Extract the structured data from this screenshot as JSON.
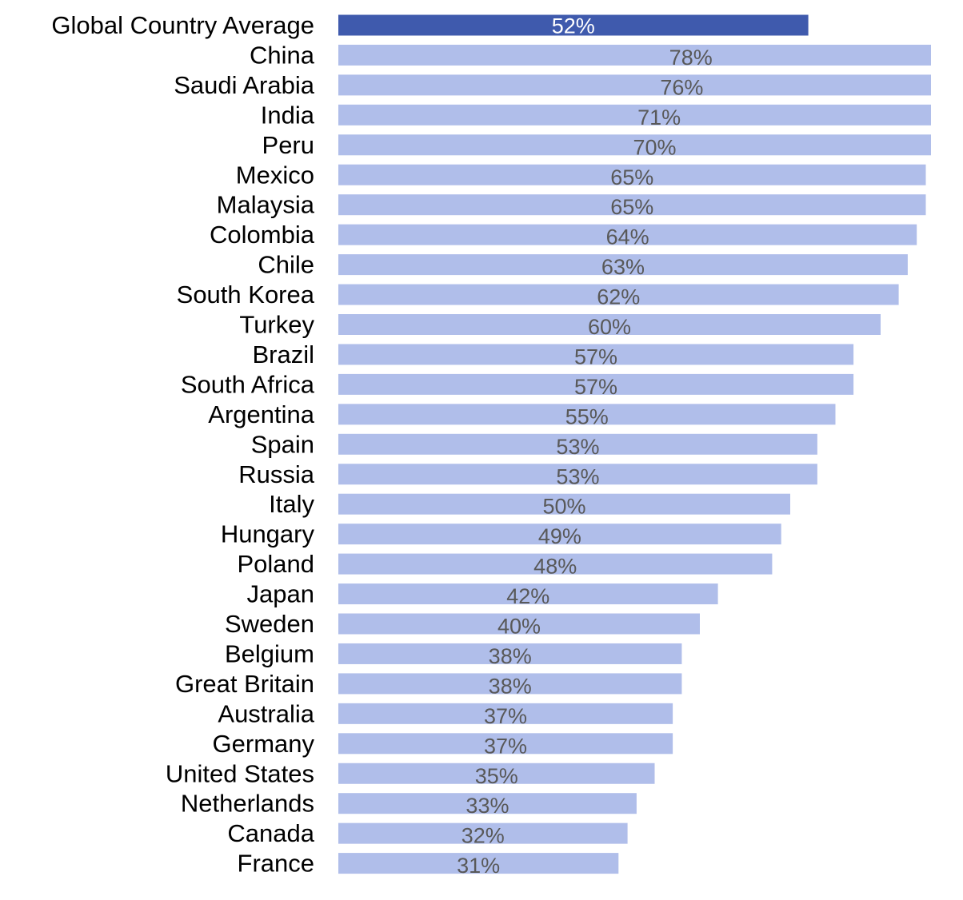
{
  "chart_data": {
    "type": "bar",
    "orientation": "horizontal",
    "categories": [
      "Global Country Average",
      "China",
      "Saudi Arabia",
      "India",
      "Peru",
      "Mexico",
      "Malaysia",
      "Colombia",
      "Chile",
      "South Korea",
      "Turkey",
      "Brazil",
      "South Africa",
      "Argentina",
      "Spain",
      "Russia",
      "Italy",
      "Hungary",
      "Poland",
      "Japan",
      "Sweden",
      "Belgium",
      "Great Britain",
      "Australia",
      "Germany",
      "United States",
      "Netherlands",
      "Canada",
      "France"
    ],
    "values": [
      52,
      78,
      76,
      71,
      70,
      65,
      65,
      64,
      63,
      62,
      60,
      57,
      57,
      55,
      53,
      53,
      50,
      49,
      48,
      42,
      40,
      38,
      38,
      37,
      37,
      35,
      33,
      32,
      31
    ],
    "value_labels": [
      "52%",
      "78%",
      "76%",
      "71%",
      "70%",
      "65%",
      "65%",
      "64%",
      "63%",
      "62%",
      "60%",
      "57%",
      "57%",
      "55%",
      "53%",
      "53%",
      "50%",
      "49%",
      "48%",
      "42%",
      "40%",
      "38%",
      "38%",
      "37%",
      "37%",
      "35%",
      "33%",
      "32%",
      "31%"
    ],
    "highlight_index": 0,
    "colors": {
      "highlight": "#3F5AAD",
      "bar": "#B0BEEA",
      "highlight_label": "#FFFFFF",
      "label": "#595959"
    },
    "title": "",
    "xlabel": "",
    "ylabel": "",
    "grid": false,
    "legend": "none"
  }
}
